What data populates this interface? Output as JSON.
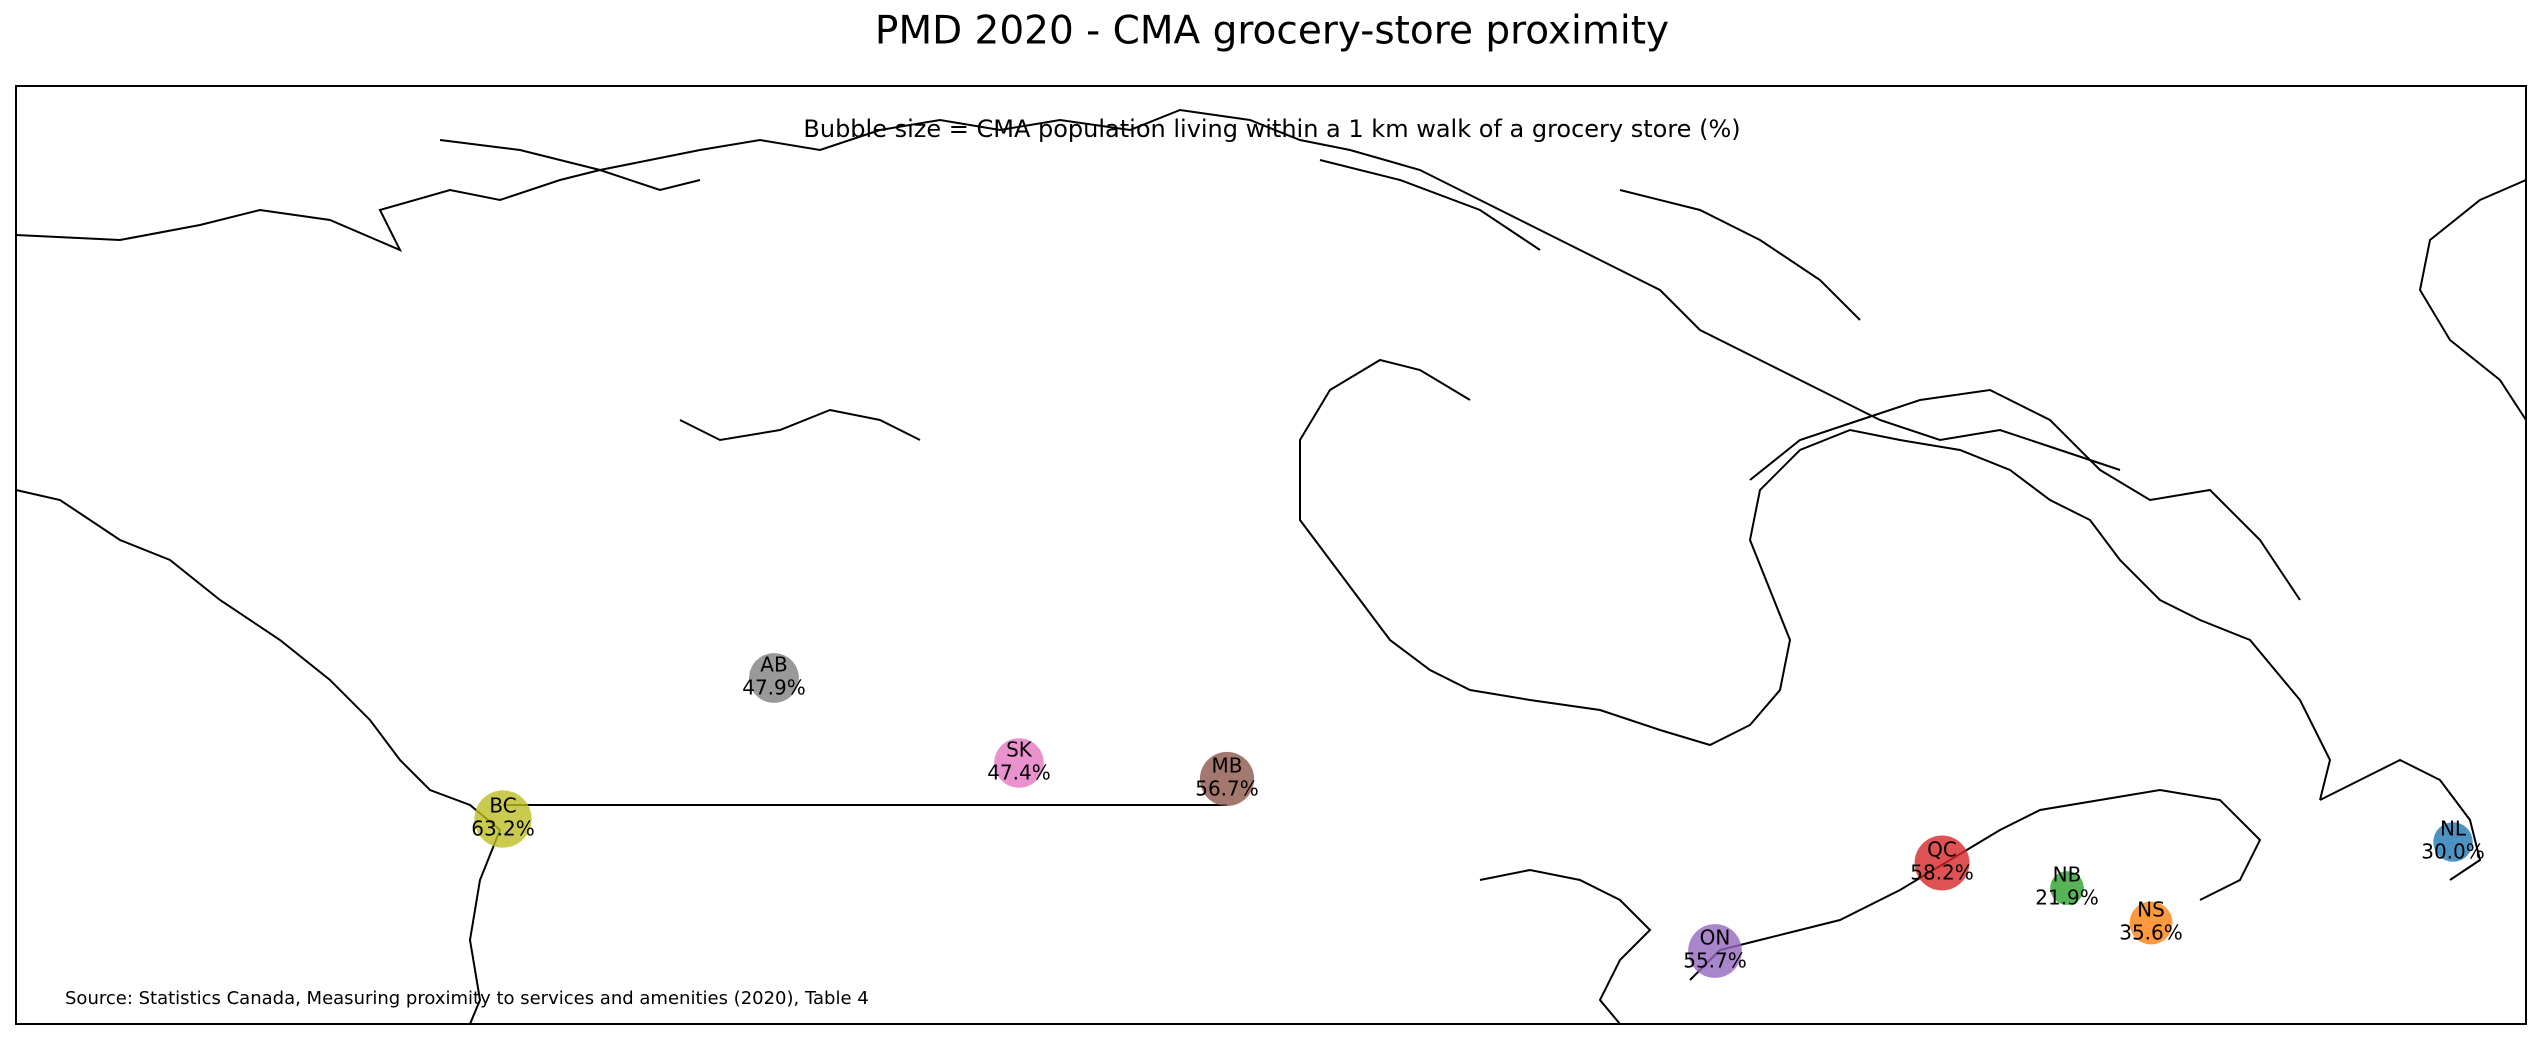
{
  "chart_data": {
    "type": "bubble",
    "title": "PMD 2020 - CMA grocery-store proximity",
    "subtitle": "Bubble size = CMA population living within a 1 km walk of a grocery store (%)",
    "source": "Source: Statistics Canada, Measuring proximity to services and amenities (2020), Table 4",
    "categories": [
      "BC",
      "AB",
      "SK",
      "MB",
      "ON",
      "QC",
      "NB",
      "NS",
      "NL"
    ],
    "values": [
      63.2,
      47.9,
      47.4,
      56.7,
      55.7,
      58.2,
      21.9,
      35.6,
      30.0
    ],
    "value_labels": [
      "63.2%",
      "47.9%",
      "47.4%",
      "56.7%",
      "55.7%",
      "58.2%",
      "21.9%",
      "35.6%",
      "30.0%"
    ],
    "colors": [
      "#bcbd22",
      "#7f7f7f",
      "#e377c2",
      "#8c564b",
      "#9467bd",
      "#d62728",
      "#2ca02c",
      "#ff7f0e",
      "#1f77b4"
    ]
  }
}
